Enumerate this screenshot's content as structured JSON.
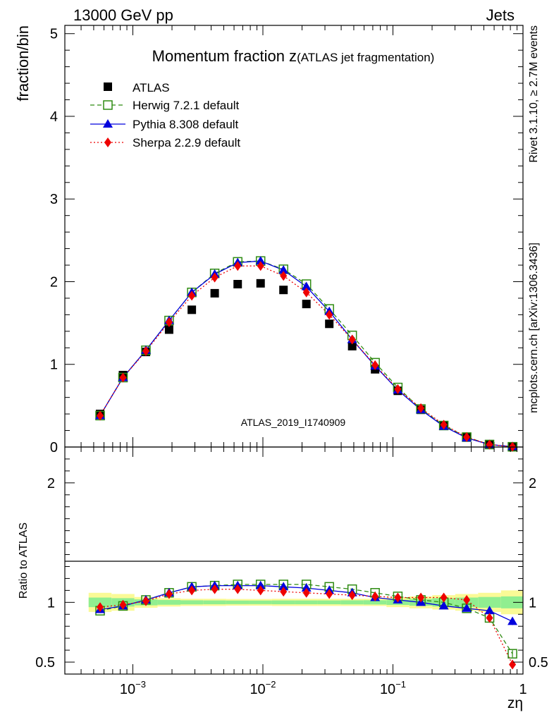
{
  "header": {
    "left": "13000 GeV pp",
    "right": "Jets"
  },
  "side_labels": {
    "rivet": "Rivet 3.1.10, ≥ 2.7M events",
    "mcplots": "mcplots.cern.ch [arXiv:1306.3436]"
  },
  "chart_data": [
    {
      "type": "scatter",
      "title_main": "Momentum fraction z",
      "title_sub": "(ATLAS jet fragmentation)",
      "watermark": "ATLAS_2019_I1740909",
      "ylabel": "fraction/bin",
      "xscale": "log",
      "xlim": [
        0.0003,
        1
      ],
      "ylim": [
        0,
        5.1
      ],
      "yticks": [
        0,
        1,
        2,
        3,
        4,
        5
      ],
      "legend_position": "top-left",
      "x": [
        0.00056,
        0.00084,
        0.00126,
        0.0019,
        0.00284,
        0.00426,
        0.0064,
        0.0096,
        0.0144,
        0.0216,
        0.0324,
        0.0486,
        0.0729,
        0.109,
        0.164,
        0.246,
        0.369,
        0.553,
        0.83
      ],
      "series": [
        {
          "name": "ATLAS",
          "style": "square",
          "color": "#000000",
          "values": [
            0.4,
            0.87,
            1.15,
            1.42,
            1.66,
            1.86,
            1.97,
            1.98,
            1.9,
            1.73,
            1.49,
            1.22,
            0.94,
            0.68,
            0.45,
            0.26,
            0.12,
            0.035,
            0.006
          ]
        },
        {
          "name": "Herwig 7.2.1 default",
          "style": "open-square",
          "color": "#2e8b12",
          "dash": "6,4",
          "values": [
            0.38,
            0.84,
            1.17,
            1.53,
            1.87,
            2.1,
            2.24,
            2.25,
            2.15,
            1.97,
            1.67,
            1.35,
            1.02,
            0.72,
            0.46,
            0.26,
            0.12,
            0.03,
            0.003
          ]
        },
        {
          "name": "Pythia 8.308 default",
          "style": "triangle",
          "color": "#0000dd",
          "dash": "",
          "values": [
            0.38,
            0.84,
            1.17,
            1.53,
            1.87,
            2.09,
            2.23,
            2.25,
            2.14,
            1.94,
            1.64,
            1.3,
            0.98,
            0.69,
            0.45,
            0.25,
            0.11,
            0.03,
            0.005
          ]
        },
        {
          "name": "Sherpa 2.2.9 default",
          "style": "diamond",
          "color": "#ee0000",
          "dash": "2,3",
          "values": [
            0.38,
            0.84,
            1.16,
            1.51,
            1.83,
            2.05,
            2.19,
            2.19,
            2.07,
            1.87,
            1.6,
            1.3,
            0.99,
            0.7,
            0.47,
            0.27,
            0.12,
            0.03,
            0.003
          ]
        }
      ]
    },
    {
      "type": "line",
      "ylabel": "Ratio to ATLAS",
      "xlabel": "zη",
      "xscale": "log",
      "ylim": [
        0.4,
        2.3
      ],
      "yticks": [
        0.5,
        1,
        2
      ],
      "xticks": [
        {
          "value": 0.001,
          "base": "10",
          "exp": "−3"
        },
        {
          "value": 0.01,
          "base": "10",
          "exp": "−2"
        },
        {
          "value": 0.1,
          "base": "10",
          "exp": "−1"
        },
        {
          "value": 1,
          "base": "1",
          "exp": ""
        }
      ],
      "bands": {
        "outer_color": "#fafa96",
        "inner_color": "#90ee90",
        "outer_halfwidth": [
          0.08,
          0.07,
          0.045,
          0.035,
          0.03,
          0.03,
          0.028,
          0.028,
          0.03,
          0.03,
          0.03,
          0.03,
          0.03,
          0.04,
          0.05,
          0.06,
          0.07,
          0.08,
          0.1
        ],
        "inner_halfwidth": [
          0.04,
          0.035,
          0.025,
          0.02,
          0.017,
          0.016,
          0.015,
          0.015,
          0.016,
          0.016,
          0.016,
          0.017,
          0.018,
          0.022,
          0.028,
          0.035,
          0.04,
          0.045,
          0.05
        ]
      },
      "series": [
        {
          "name": "Herwig 7.2.1 default",
          "values": [
            0.93,
            0.97,
            1.02,
            1.08,
            1.13,
            1.14,
            1.15,
            1.15,
            1.15,
            1.15,
            1.13,
            1.11,
            1.08,
            1.05,
            1.02,
            1.0,
            0.95,
            0.87,
            0.57
          ],
          "err": [
            0.02,
            0.01,
            0.01,
            0.01,
            0.01,
            0.01,
            0.01,
            0.01,
            0.01,
            0.01,
            0.01,
            0.01,
            0.01,
            0.01,
            0.01,
            0.01,
            0.015,
            0.02,
            0.03
          ]
        },
        {
          "name": "Pythia 8.308 default",
          "values": [
            0.94,
            0.97,
            1.02,
            1.08,
            1.13,
            1.14,
            1.14,
            1.14,
            1.13,
            1.12,
            1.1,
            1.08,
            1.04,
            1.02,
            1.0,
            0.97,
            0.95,
            0.93,
            0.84
          ],
          "err": [
            0.02,
            0.01,
            0.01,
            0.01,
            0.01,
            0.01,
            0.01,
            0.01,
            0.01,
            0.01,
            0.01,
            0.01,
            0.01,
            0.01,
            0.01,
            0.01,
            0.015,
            0.02,
            0.03
          ]
        },
        {
          "name": "Sherpa 2.2.9 default",
          "values": [
            0.96,
            0.98,
            1.01,
            1.07,
            1.1,
            1.11,
            1.11,
            1.1,
            1.09,
            1.08,
            1.07,
            1.06,
            1.05,
            1.04,
            1.04,
            1.04,
            1.02,
            0.87,
            0.48
          ],
          "err": [
            0.02,
            0.01,
            0.01,
            0.01,
            0.01,
            0.01,
            0.01,
            0.01,
            0.01,
            0.01,
            0.01,
            0.01,
            0.01,
            0.01,
            0.01,
            0.01,
            0.015,
            0.02,
            0.03
          ]
        }
      ]
    }
  ]
}
